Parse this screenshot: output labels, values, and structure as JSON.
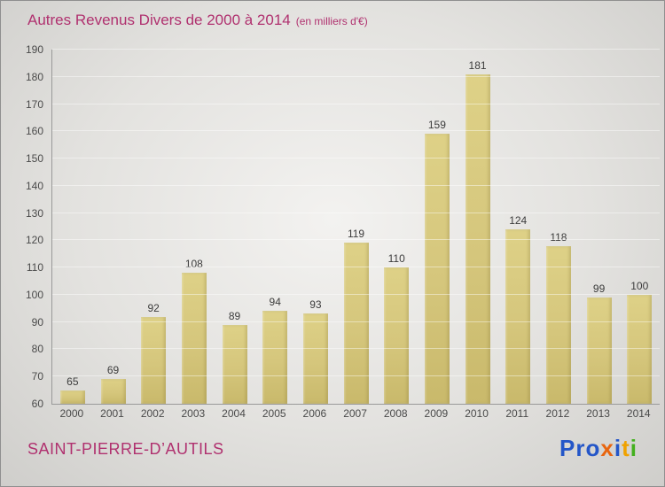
{
  "header": {
    "title": "Autres Revenus Divers de 2000 à 2014",
    "subtitle": "(en milliers d'€)"
  },
  "footer": {
    "commune": "SAINT-PIERRE-D’AUTILS",
    "logo_letters": [
      {
        "ch": "P",
        "color": "#2456c8"
      },
      {
        "ch": "r",
        "color": "#2456c8"
      },
      {
        "ch": "o",
        "color": "#2456c8"
      },
      {
        "ch": "x",
        "color": "#e8650f"
      },
      {
        "ch": "i",
        "color": "#2456c8"
      },
      {
        "ch": "t",
        "color": "#f0a200"
      },
      {
        "ch": "i",
        "color": "#43b01e"
      }
    ]
  },
  "colors": {
    "title": "#b0316f",
    "bar_top": "#ded187",
    "bar_bottom": "#c9b96b",
    "axis": "#999999",
    "tick_label": "#4a4a4a",
    "value_label": "#3c3c3c"
  },
  "chart_data": {
    "type": "bar",
    "title": "Autres Revenus Divers de 2000 à 2014",
    "subtitle": "(en milliers d'€)",
    "categories": [
      "2000",
      "2001",
      "2002",
      "2003",
      "2004",
      "2005",
      "2006",
      "2007",
      "2008",
      "2009",
      "2010",
      "2011",
      "2012",
      "2013",
      "2014"
    ],
    "values": [
      65,
      69,
      92,
      108,
      89,
      94,
      93,
      119,
      110,
      159,
      181,
      124,
      118,
      99,
      100
    ],
    "xlabel": "",
    "ylabel": "",
    "ylim": [
      60,
      190
    ],
    "ytick_step": 10,
    "grid": true,
    "value_labels": true,
    "legend": "none"
  }
}
